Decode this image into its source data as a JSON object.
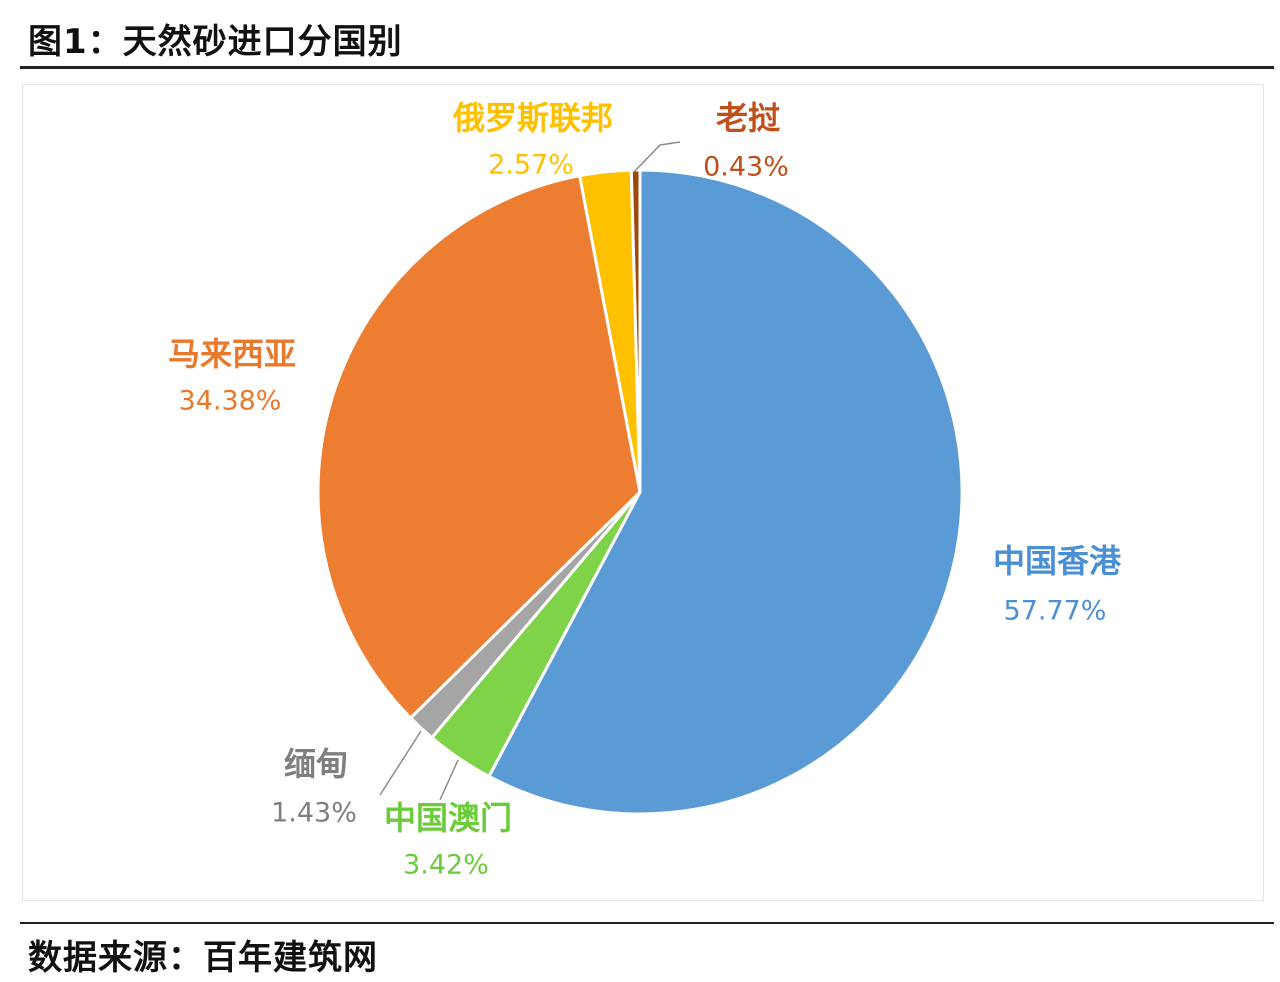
{
  "header": {
    "title": "图1：天然砂进口分国别"
  },
  "footer": {
    "source": "数据来源：百年建筑网"
  },
  "chart_data": {
    "type": "pie",
    "title": "图1：天然砂进口分国别",
    "slices": [
      {
        "name": "中国香港",
        "value": 57.77,
        "label": "57.77%",
        "color": "#5B9BD5"
      },
      {
        "name": "中国澳门",
        "value": 3.42,
        "label": "3.42%",
        "color": "#7ED348"
      },
      {
        "name": "缅甸",
        "value": 1.43,
        "label": "1.43%",
        "color": "#A5A5A5"
      },
      {
        "name": "马来西亚",
        "value": 34.38,
        "label": "34.38%",
        "color": "#ED7D31"
      },
      {
        "name": "俄罗斯联邦",
        "value": 2.57,
        "label": "2.57%",
        "color": "#FFC000"
      },
      {
        "name": "老挝",
        "value": 0.43,
        "label": "0.43%",
        "color": "#9E480E"
      }
    ],
    "label_colors": {
      "中国香港": "#4A8FD4",
      "中国澳门": "#6CCB3A",
      "缅甸": "#7F7F7F",
      "马来西亚": "#E8782A",
      "俄罗斯联邦": "#FFC000",
      "老挝": "#C0501A"
    },
    "legend": "none",
    "start_angle_deg": 0,
    "direction": "clockwise"
  }
}
